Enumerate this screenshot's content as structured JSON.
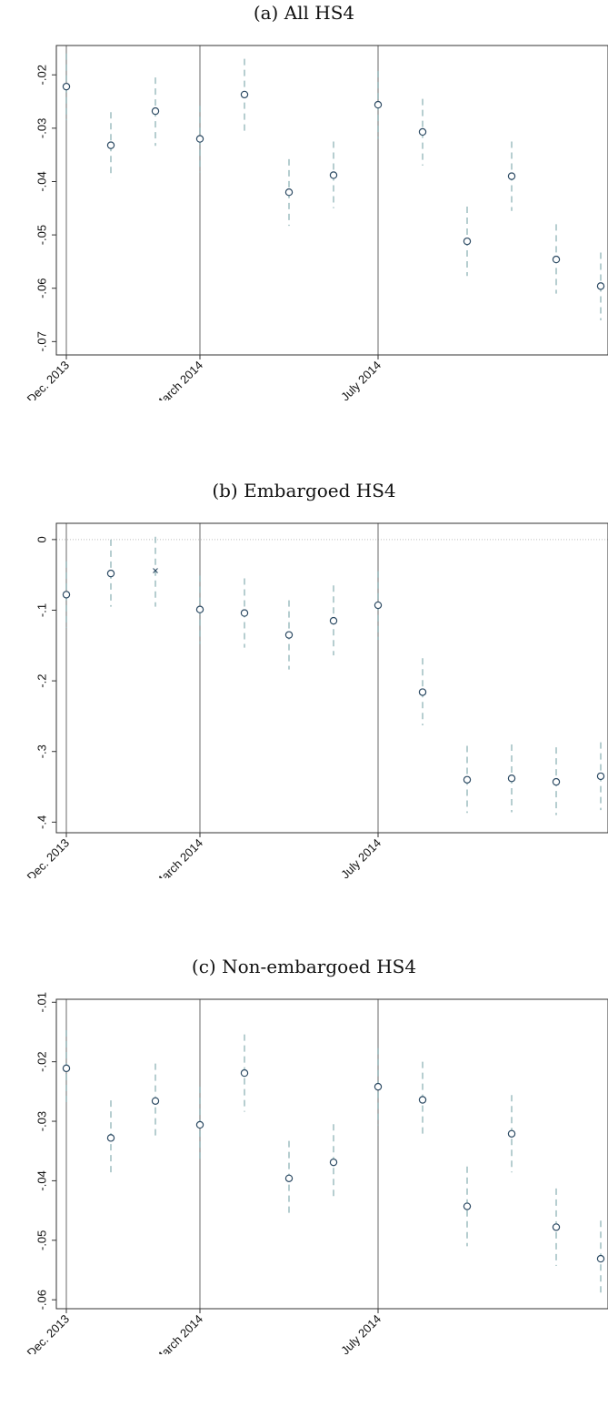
{
  "chart_data": [
    {
      "type": "scatter",
      "title": "(a) All HS4",
      "x": [
        0,
        1,
        2,
        3,
        4,
        5,
        6,
        7,
        8,
        9,
        10,
        11,
        12
      ],
      "xtick_labels": [
        {
          "x": 0,
          "label": "Dec. 2013"
        },
        {
          "x": 3,
          "label": "March 2014"
        },
        {
          "x": 7,
          "label": "July 2014"
        }
      ],
      "vlines": [
        0,
        3,
        7
      ],
      "ylim": [
        -0.0725,
        -0.0145
      ],
      "yticks": [
        {
          "v": -0.02,
          "label": "-.02"
        },
        {
          "v": -0.03,
          "label": "-.03"
        },
        {
          "v": -0.04,
          "label": "-.04"
        },
        {
          "v": -0.05,
          "label": "-.05"
        },
        {
          "v": -0.06,
          "label": "-.06"
        },
        {
          "v": -0.07,
          "label": "-.07"
        }
      ],
      "zero_line": false,
      "values": [
        -0.0222,
        -0.0332,
        -0.0268,
        -0.032,
        -0.0237,
        -0.042,
        -0.0388,
        -0.0256,
        -0.0307,
        -0.0512,
        -0.039,
        -0.0546,
        -0.0596
      ],
      "ci_low": [
        -0.0285,
        -0.0393,
        -0.0333,
        -0.0383,
        -0.0305,
        -0.0483,
        -0.045,
        -0.032,
        -0.037,
        -0.0577,
        -0.0455,
        -0.061,
        -0.066
      ],
      "ci_high": [
        -0.016,
        -0.027,
        -0.0205,
        -0.0258,
        -0.017,
        -0.0358,
        -0.0325,
        -0.0193,
        -0.0245,
        -0.0447,
        -0.0325,
        -0.048,
        -0.0533
      ],
      "markers": [
        "o",
        "o",
        "o",
        "o",
        "o",
        "o",
        "o",
        "o",
        "o",
        "o",
        "o",
        "o",
        "o"
      ]
    },
    {
      "type": "scatter",
      "title": "(b) Embargoed HS4",
      "x": [
        0,
        1,
        2,
        3,
        4,
        5,
        6,
        7,
        8,
        9,
        10,
        11,
        12
      ],
      "xtick_labels": [
        {
          "x": 0,
          "label": "Dec. 2013"
        },
        {
          "x": 3,
          "label": "March 2014"
        },
        {
          "x": 7,
          "label": "July 2014"
        }
      ],
      "vlines": [
        0,
        3,
        7
      ],
      "ylim": [
        -0.415,
        0.023
      ],
      "yticks": [
        {
          "v": 0,
          "label": "0"
        },
        {
          "v": -0.1,
          "label": "-.1"
        },
        {
          "v": -0.2,
          "label": "-.2"
        },
        {
          "v": -0.3,
          "label": "-.3"
        },
        {
          "v": -0.4,
          "label": "-.4"
        }
      ],
      "zero_line": true,
      "values": [
        -0.078,
        -0.048,
        -0.044,
        -0.099,
        -0.104,
        -0.135,
        -0.115,
        -0.093,
        -0.216,
        -0.34,
        -0.338,
        -0.343,
        -0.335
      ],
      "ci_low": [
        -0.125,
        -0.095,
        -0.095,
        -0.148,
        -0.153,
        -0.184,
        -0.164,
        -0.142,
        -0.263,
        -0.387,
        -0.386,
        -0.39,
        -0.383
      ],
      "ci_high": [
        -0.031,
        0.0,
        0.004,
        -0.051,
        -0.055,
        -0.086,
        -0.065,
        -0.045,
        -0.168,
        -0.292,
        -0.29,
        -0.294,
        -0.287
      ],
      "markers": [
        "o",
        "o",
        "x",
        "o",
        "o",
        "o",
        "o",
        "o",
        "o",
        "o",
        "o",
        "o",
        "o"
      ]
    },
    {
      "type": "scatter",
      "title": "(c) Non-embargoed HS4",
      "x": [
        0,
        1,
        2,
        3,
        4,
        5,
        6,
        7,
        8,
        9,
        10,
        11,
        12
      ],
      "xtick_labels": [
        {
          "x": 0,
          "label": "Dec. 2013"
        },
        {
          "x": 3,
          "label": "March 2014"
        },
        {
          "x": 7,
          "label": "July 2014"
        }
      ],
      "vlines": [
        0,
        3,
        7
      ],
      "ylim": [
        -0.0615,
        -0.0095
      ],
      "yticks": [
        {
          "v": -0.01,
          "label": "-.01"
        },
        {
          "v": -0.02,
          "label": "-.02"
        },
        {
          "v": -0.03,
          "label": "-.03"
        },
        {
          "v": -0.04,
          "label": "-.04"
        },
        {
          "v": -0.05,
          "label": "-.05"
        },
        {
          "v": -0.06,
          "label": "-.06"
        }
      ],
      "zero_line": false,
      "values": [
        -0.0211,
        -0.0328,
        -0.0266,
        -0.0306,
        -0.0219,
        -0.0396,
        -0.0369,
        -0.0242,
        -0.0264,
        -0.0443,
        -0.0321,
        -0.0478,
        -0.0531
      ],
      "ci_low": [
        -0.0275,
        -0.039,
        -0.033,
        -0.037,
        -0.0284,
        -0.046,
        -0.0433,
        -0.0307,
        -0.0328,
        -0.051,
        -0.0386,
        -0.0543,
        -0.0595
      ],
      "ci_high": [
        -0.0147,
        -0.0265,
        -0.0203,
        -0.0242,
        -0.0154,
        -0.0333,
        -0.0305,
        -0.0177,
        -0.02,
        -0.0376,
        -0.0256,
        -0.0413,
        -0.0467
      ],
      "markers": [
        "o",
        "o",
        "o",
        "o",
        "o",
        "o",
        "o",
        "o",
        "o",
        "o",
        "o",
        "o",
        "o"
      ]
    }
  ],
  "colors": {
    "marker": "#2c4a63",
    "ci": "#8fb3b7",
    "vline": "#8c8c8c",
    "frame": "#333333",
    "zero": "#bfbfbf"
  }
}
